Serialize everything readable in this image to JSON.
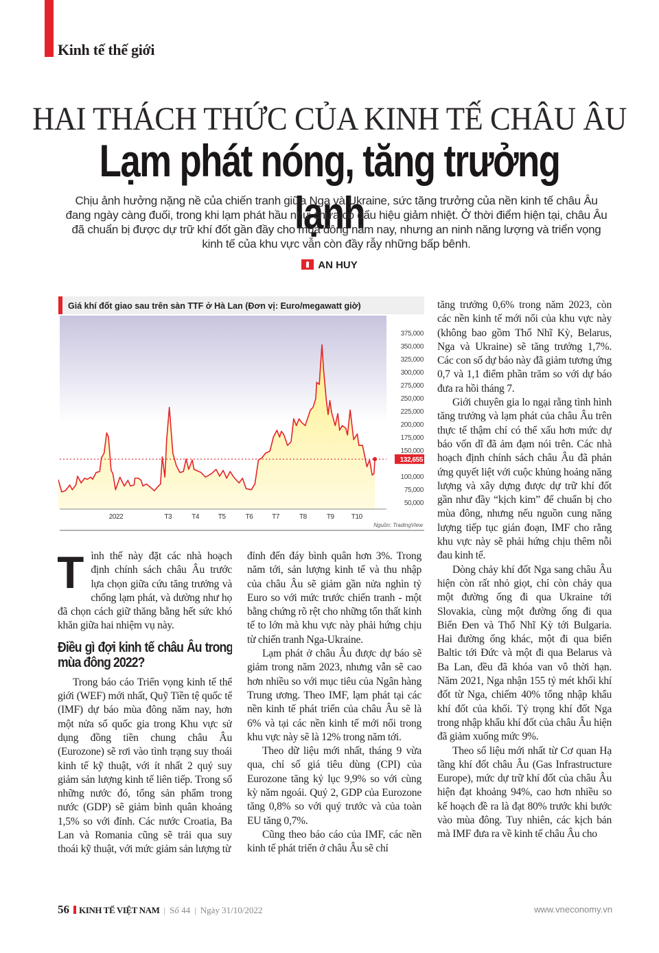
{
  "section": "Kinh tế thế giới",
  "title_line1": "HAI THÁCH THỨC CỦA KINH TẾ CHÂU ÂU",
  "title_line2": "Lạm phát nóng, tăng trưởng lạnh",
  "lead": "Chịu ảnh hưởng nặng nề của chiến tranh giữa Nga và Ukraine, sức tăng trưởng của nền kinh tế châu Âu đang ngày càng đuối, trong khi lạm phát hầu như chưa có dấu hiệu giảm nhiệt. Ở thời điểm hiện tại, châu Âu đã chuẩn bị được dự trữ khí đốt gần đầy cho mùa đông năm nay, nhưng an ninh năng lượng và triển vọng kinh tế của khu vực vẫn còn đầy rẫy những bấp bênh.",
  "author": "AN HUY",
  "colors": {
    "accent": "#e3232a",
    "line": "#e3232a",
    "area_fill": "#fff3a0",
    "plot_bg_top": "#c8c4df"
  },
  "chart_data": {
    "type": "area",
    "title": "Giá khí đốt giao sau trên sàn TTF ở Hà Lan (Đơn vị: Euro/megawatt giờ)",
    "source": "Nguồn: TradingView",
    "x_ticks": [
      {
        "date": "2022-01-01",
        "label": "2022"
      },
      {
        "date": "2022-03-01",
        "label": "T3"
      },
      {
        "date": "2022-04-01",
        "label": "T4"
      },
      {
        "date": "2022-05-01",
        "label": "T5"
      },
      {
        "date": "2022-06-01",
        "label": "T6"
      },
      {
        "date": "2022-07-01",
        "label": "T7"
      },
      {
        "date": "2022-08-01",
        "label": "T8"
      },
      {
        "date": "2022-09-01",
        "label": "T9"
      },
      {
        "date": "2022-10-01",
        "label": "T10"
      }
    ],
    "y_ticks": [
      {
        "value": 375,
        "label": "375,000"
      },
      {
        "value": 350,
        "label": "350,000"
      },
      {
        "value": 325,
        "label": "325,000"
      },
      {
        "value": 300,
        "label": "300,000"
      },
      {
        "value": 275,
        "label": "275,000"
      },
      {
        "value": 250,
        "label": "250,000"
      },
      {
        "value": 225,
        "label": "225,000"
      },
      {
        "value": 200,
        "label": "200,000"
      },
      {
        "value": 175,
        "label": "175,000"
      },
      {
        "value": 150,
        "label": "150,000"
      },
      {
        "value": 100,
        "label": "100,000"
      },
      {
        "value": 75,
        "label": "75,000"
      },
      {
        "value": 50,
        "label": "50,000"
      }
    ],
    "y_axis_side": "right",
    "grid": false,
    "last_value": {
      "value": 132.655,
      "label": "132,655",
      "date": "2022-10-23"
    },
    "points": [
      [
        "2021-10-29",
        93.7
      ],
      [
        "2021-11-02",
        69.7
      ],
      [
        "2021-11-06",
        72
      ],
      [
        "2021-11-09",
        78
      ],
      [
        "2021-11-11",
        83
      ],
      [
        "2021-11-14",
        74
      ],
      [
        "2021-11-18",
        83
      ],
      [
        "2021-11-20",
        100
      ],
      [
        "2021-11-24",
        87
      ],
      [
        "2021-11-28",
        96
      ],
      [
        "2021-12-01",
        94
      ],
      [
        "2021-12-05",
        98
      ],
      [
        "2021-12-07",
        94
      ],
      [
        "2021-12-11",
        107
      ],
      [
        "2021-12-15",
        109
      ],
      [
        "2021-12-17",
        135
      ],
      [
        "2021-12-20",
        144
      ],
      [
        "2021-12-23",
        183
      ],
      [
        "2021-12-25",
        175
      ],
      [
        "2021-12-28",
        111
      ],
      [
        "2021-12-30",
        105
      ],
      [
        "2022-01-02",
        74
      ],
      [
        "2022-01-07",
        98
      ],
      [
        "2022-01-12",
        81
      ],
      [
        "2022-01-16",
        92
      ],
      [
        "2022-01-19",
        81
      ],
      [
        "2022-01-23",
        83
      ],
      [
        "2022-01-24",
        96
      ],
      [
        "2022-01-28",
        96
      ],
      [
        "2022-01-31",
        92
      ],
      [
        "2022-02-02",
        81
      ],
      [
        "2022-02-06",
        85
      ],
      [
        "2022-02-11",
        78
      ],
      [
        "2022-02-15",
        72
      ],
      [
        "2022-02-18",
        78
      ],
      [
        "2022-02-22",
        85
      ],
      [
        "2022-02-24",
        137
      ],
      [
        "2022-02-27",
        98
      ],
      [
        "2022-03-01",
        170
      ],
      [
        "2022-03-04",
        232
      ],
      [
        "2022-03-08",
        144
      ],
      [
        "2022-03-12",
        120
      ],
      [
        "2022-03-16",
        107
      ],
      [
        "2022-03-20",
        109
      ],
      [
        "2022-03-23",
        133
      ],
      [
        "2022-03-26",
        113
      ],
      [
        "2022-03-30",
        131
      ],
      [
        "2022-04-01",
        113
      ],
      [
        "2022-04-09",
        107
      ],
      [
        "2022-04-14",
        98
      ],
      [
        "2022-04-21",
        105
      ],
      [
        "2022-04-26",
        113
      ],
      [
        "2022-04-30",
        100
      ],
      [
        "2022-05-04",
        111
      ],
      [
        "2022-05-08",
        96
      ],
      [
        "2022-05-12",
        109
      ],
      [
        "2022-05-16",
        98
      ],
      [
        "2022-05-22",
        87
      ],
      [
        "2022-05-26",
        96
      ],
      [
        "2022-05-30",
        76
      ],
      [
        "2022-06-05",
        74
      ],
      [
        "2022-06-09",
        85
      ],
      [
        "2022-06-13",
        131
      ],
      [
        "2022-06-17",
        135
      ],
      [
        "2022-06-21",
        144
      ],
      [
        "2022-06-26",
        148
      ],
      [
        "2022-06-30",
        175
      ],
      [
        "2022-07-04",
        188
      ],
      [
        "2022-07-07",
        175
      ],
      [
        "2022-07-09",
        186
      ],
      [
        "2022-07-12",
        179
      ],
      [
        "2022-07-16",
        159
      ],
      [
        "2022-07-20",
        166
      ],
      [
        "2022-07-23",
        210
      ],
      [
        "2022-07-26",
        197
      ],
      [
        "2022-07-29",
        210
      ],
      [
        "2022-08-01",
        203
      ],
      [
        "2022-08-05",
        197
      ],
      [
        "2022-08-08",
        212
      ],
      [
        "2022-08-11",
        227
      ],
      [
        "2022-08-14",
        232
      ],
      [
        "2022-08-17",
        249
      ],
      [
        "2022-08-18",
        280
      ],
      [
        "2022-08-21",
        276
      ],
      [
        "2022-08-24",
        352
      ],
      [
        "2022-08-26",
        302
      ],
      [
        "2022-08-29",
        245
      ],
      [
        "2022-08-31",
        218
      ],
      [
        "2022-09-02",
        245
      ],
      [
        "2022-09-04",
        222
      ],
      [
        "2022-09-08",
        197
      ],
      [
        "2022-09-11",
        220
      ],
      [
        "2022-09-13",
        188
      ],
      [
        "2022-09-16",
        197
      ],
      [
        "2022-09-20",
        192
      ],
      [
        "2022-09-22",
        179
      ],
      [
        "2022-09-25",
        227
      ],
      [
        "2022-09-29",
        170
      ],
      [
        "2022-10-03",
        181
      ],
      [
        "2022-10-05",
        159
      ],
      [
        "2022-10-09",
        159
      ],
      [
        "2022-10-14",
        118
      ],
      [
        "2022-10-17",
        131
      ],
      [
        "2022-10-20",
        102
      ],
      [
        "2022-10-22",
        105
      ],
      [
        "2022-10-23",
        132.655
      ]
    ]
  },
  "body": {
    "col1": {
      "dropcap": "T",
      "p1": "ình thế này đặt các nhà hoạch định chính sách châu Âu trước lựa chọn giữa cứu tăng trưởng và chống lạm phát, và dường như họ đã chọn cách giữ thăng bằng hết sức khó khăn giữa hai nhiệm vụ này.",
      "subhead": "Điều gì đợi kinh tế châu Âu trong mùa đông 2022?",
      "p2": "Trong báo cáo Triển vọng kinh tế thế giới (WEF) mới nhất, Quỹ Tiền tệ quốc tế (IMF) dự báo mùa đông năm nay, hơn một nửa số quốc gia trong Khu vực sử dụng đồng tiền chung châu Âu (Eurozone) sẽ rơi vào tình trạng suy thoái kinh tế kỹ thuật, với ít nhất 2 quý suy giảm sản lượng kinh tế liên tiếp. Trong số những nước đó, tổng sản phẩm trong nước (GDP) sẽ giảm bình quân khoảng 1,5% so với đỉnh. Các nước Croatia, Ba Lan và Romania cũng sẽ trải qua suy thoái kỹ thuật, với mức giảm sản lượng từ"
    },
    "col2": {
      "p1": "đỉnh đến đáy bình quân hơn 3%. Trong năm tới, sản lượng kinh tế và thu nhập của châu Âu sẽ giảm gần nửa nghìn tỷ Euro so với mức trước chiến tranh - một bằng chứng rõ rệt cho những tổn thất kinh tế to lớn mà khu vực này phải hứng chịu từ chiến tranh Nga-Ukraine.",
      "p2": "Lạm phát ở châu Âu được dự báo sẽ giảm trong năm 2023, nhưng vẫn sẽ cao hơn nhiều so với mục tiêu của Ngân hàng Trung ương. Theo IMF, lạm phát tại các nền kinh tế phát triển của châu Âu sẽ là 6% và tại các nền kinh tế mới nổi trong khu vực này sẽ là 12% trong năm tới.",
      "p3": "Theo dữ liệu mới nhất, tháng 9 vừa qua, chỉ số giá tiêu dùng (CPI) của Eurozone tăng kỷ lục 9,9% so với cùng kỳ năm ngoái. Quý 2, GDP của Eurozone tăng 0,8% so với quý trước và của toàn EU tăng 0,7%.",
      "p4": "Cũng theo báo cáo của IMF, các nền kinh tế phát triển ở châu Âu sẽ chỉ"
    },
    "col3": {
      "p1": "tăng trưởng 0,6% trong năm 2023, còn các nền kinh tế mới nổi của khu vực này (không bao gồm Thổ Nhĩ Kỳ, Belarus, Nga và Ukraine) sẽ tăng trưởng 1,7%. Các con số dự báo này đã giảm tương ứng 0,7 và 1,1 điểm phần trăm so với dự báo đưa ra hồi tháng 7.",
      "p2": "Giới chuyên gia lo ngại rằng tình hình tăng trưởng và lạm phát của châu Âu trên thực tế thậm chí có thể xấu hơn mức dự báo vốn dĩ đã ảm đạm nói trên. Các nhà hoạch định chính sách châu Âu đã phản ứng quyết liệt với cuộc khủng hoảng năng lượng và xây dựng được dự trữ khí đốt gần như đầy “kịch kim” để chuẩn bị cho mùa đông, nhưng nếu nguồn cung năng lượng tiếp tục gián đoạn, IMF cho rằng khu vực này sẽ phải hứng chịu thêm nỗi đau kinh tế.",
      "p3": "Dòng chảy khí đốt Nga sang châu Âu hiện còn rất nhỏ giọt, chỉ còn chảy qua một đường ống đi qua Ukraine tới Slovakia, cùng một đường ống đi qua Biển Đen và Thổ Nhĩ Kỳ tới Bulgaria. Hai đường ống khác, một đi qua biển Baltic tới Đức và một đi qua Belarus và Ba Lan, đều đã khóa van vô thời hạn. Năm 2021, Nga nhận 155 tỷ mét khối khí đốt từ Nga, chiếm 40% tổng nhập khẩu khí đốt của khối. Tỷ trọng khí đốt Nga trong nhập khẩu khí đốt của châu Âu hiện đã giảm xuống mức 9%.",
      "p4": "Theo số liệu mới nhất từ Cơ quan Hạ tầng khí đốt châu Âu (Gas Infrastructure Europe), mức dự trữ khí đốt của châu Âu hiện đạt khoảng 94%, cao hơn nhiều so kế hoạch đề ra là đạt 80% trước khi bước vào mùa đông. Tuy nhiên, các kịch bản mà IMF đưa ra về kinh tế châu Âu cho"
    }
  },
  "footer": {
    "page": "56",
    "magazine": "KINH TẾ VIỆT NAM",
    "issue": "Số 44",
    "date": "Ngày 31/10/2022",
    "website": "www.vneconomy.vn"
  }
}
